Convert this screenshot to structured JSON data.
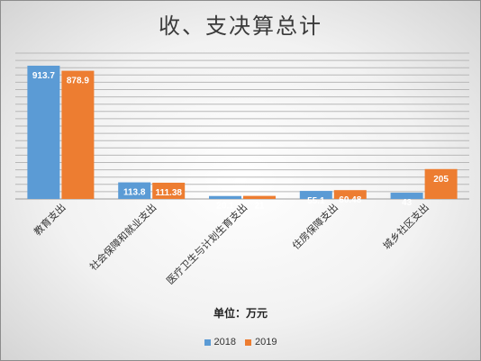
{
  "chart_data": {
    "type": "bar",
    "title": "收、支决算总计",
    "unit": "单位：万元",
    "categories": [
      "教育支出",
      "社会保障和就业支出",
      "医疗卫生与计划生育支出",
      "住房保障支出",
      "城乡社区支出"
    ],
    "series": [
      {
        "name": "2018",
        "values": [
          913.7,
          113.8,
          20.1,
          55.1,
          43
        ],
        "labels": [
          "913.7",
          "113.8",
          "20.1",
          "55.1",
          "43"
        ],
        "color": "#5b9bd5"
      },
      {
        "name": "2019",
        "values": [
          878.9,
          111.38,
          21,
          60.48,
          205
        ],
        "labels": [
          "878.9",
          "111.38",
          "21",
          "60.48",
          "205"
        ],
        "color": "#ed7d31"
      }
    ],
    "ylim": [
      0,
      1000
    ],
    "grid": true,
    "legend_position": "bottom"
  }
}
